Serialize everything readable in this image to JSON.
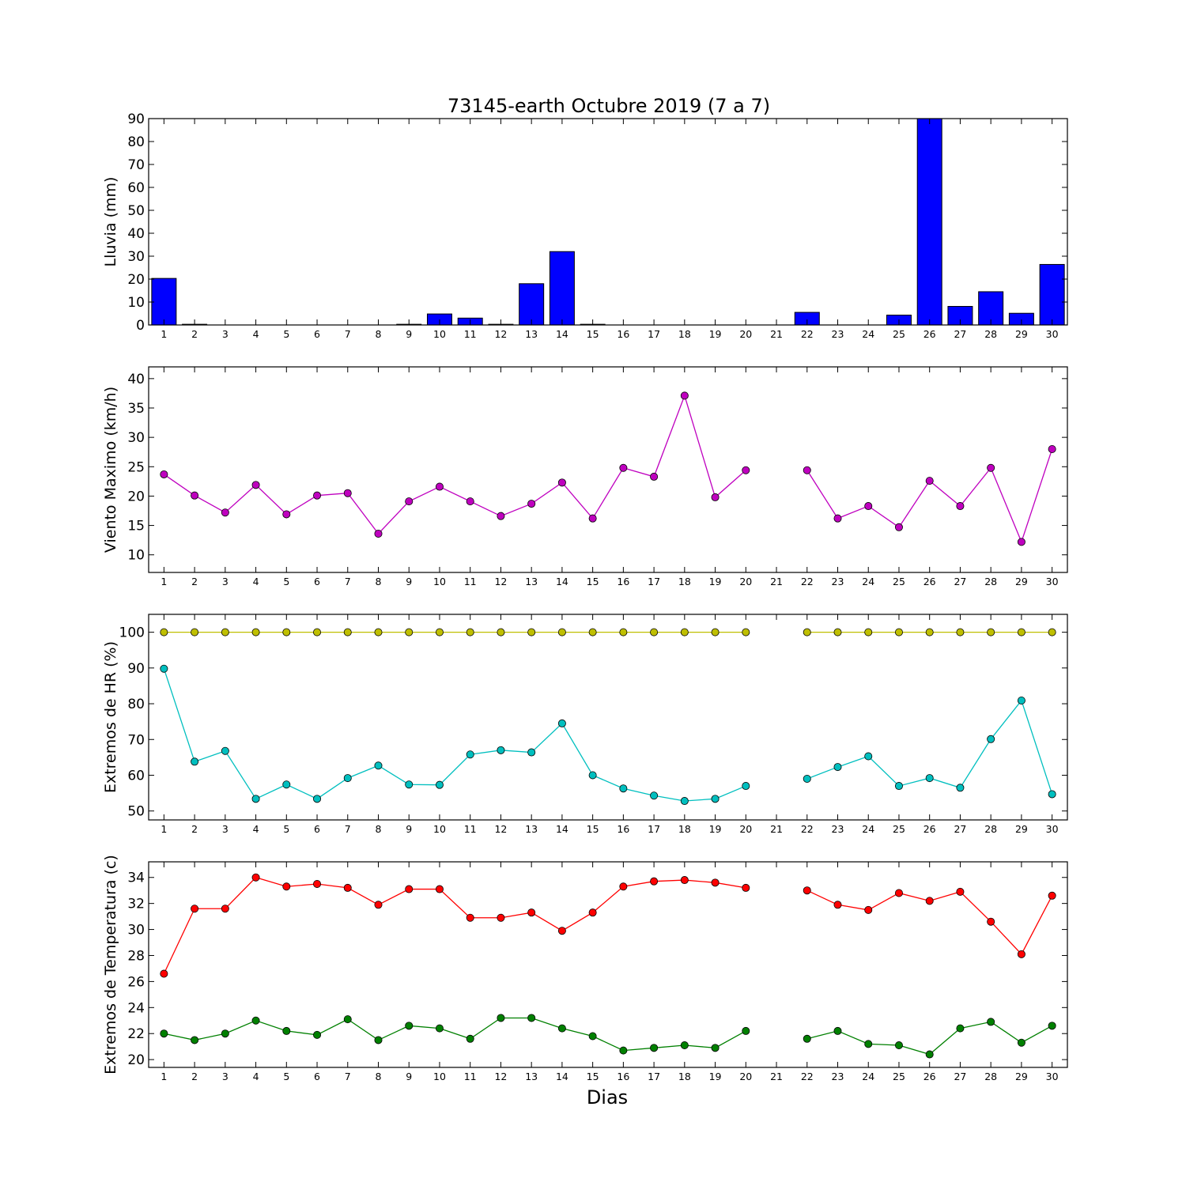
{
  "title": "73145-earth Octubre 2019  (7 a 7)",
  "xlabel": "Dias",
  "chart_data": [
    {
      "type": "bar",
      "ylabel": "Lluvia (mm)",
      "ylim": [
        0,
        90
      ],
      "yticks": [
        0,
        10,
        20,
        30,
        40,
        50,
        60,
        70,
        80,
        90
      ],
      "categories": [
        1,
        2,
        3,
        4,
        5,
        6,
        7,
        8,
        9,
        10,
        11,
        12,
        13,
        14,
        15,
        16,
        17,
        18,
        19,
        20,
        21,
        22,
        23,
        24,
        25,
        26,
        27,
        28,
        29,
        30
      ],
      "values": [
        20.3,
        0.3,
        0,
        0,
        0,
        0,
        0,
        0,
        0.3,
        4.8,
        3.0,
        0.3,
        18.0,
        32.0,
        0.3,
        0,
        0,
        0,
        0,
        0,
        null,
        5.5,
        0,
        0,
        4.3,
        90.0,
        8.1,
        14.5,
        5.1,
        26.4
      ],
      "color": "#0000ff",
      "grid": false
    },
    {
      "type": "line",
      "ylabel": "Viento Maximo (km/h)",
      "ylim": [
        7,
        42
      ],
      "yticks": [
        10,
        15,
        20,
        25,
        30,
        35,
        40
      ],
      "x": [
        1,
        2,
        3,
        4,
        5,
        6,
        7,
        8,
        9,
        10,
        11,
        12,
        13,
        14,
        15,
        16,
        17,
        18,
        19,
        20,
        21,
        22,
        23,
        24,
        25,
        26,
        27,
        28,
        29,
        30
      ],
      "series": [
        {
          "color": "#bf00bf",
          "values": [
            23.7,
            20.1,
            17.2,
            21.9,
            16.9,
            20.1,
            20.5,
            13.6,
            19.1,
            21.6,
            19.1,
            16.6,
            18.7,
            22.3,
            16.2,
            24.8,
            23.3,
            37.1,
            19.8,
            24.4,
            null,
            24.4,
            16.2,
            18.3,
            14.7,
            22.6,
            18.3,
            24.8,
            12.2,
            28.0
          ]
        }
      ],
      "grid": false
    },
    {
      "type": "line",
      "ylabel": "Extremos de HR (%)",
      "ylim": [
        47.5,
        105
      ],
      "yticks": [
        50,
        60,
        70,
        80,
        90,
        100
      ],
      "x": [
        1,
        2,
        3,
        4,
        5,
        6,
        7,
        8,
        9,
        10,
        11,
        12,
        13,
        14,
        15,
        16,
        17,
        18,
        19,
        20,
        21,
        22,
        23,
        24,
        25,
        26,
        27,
        28,
        29,
        30
      ],
      "series": [
        {
          "color": "#bfbf00",
          "values": [
            100,
            100,
            100,
            100,
            100,
            100,
            100,
            100,
            100,
            100,
            100,
            100,
            100,
            100,
            100,
            100,
            100,
            100,
            100,
            100,
            null,
            100,
            100,
            100,
            100,
            100,
            100,
            100,
            100,
            100
          ]
        },
        {
          "color": "#00bfbf",
          "values": [
            89.8,
            63.8,
            66.8,
            53.4,
            57.4,
            53.4,
            59.2,
            62.7,
            57.4,
            57.3,
            65.8,
            67.0,
            66.4,
            74.5,
            60.0,
            56.3,
            54.3,
            52.8,
            53.4,
            57.0,
            null,
            59.0,
            62.3,
            65.3,
            57.0,
            59.2,
            56.5,
            70.1,
            80.9,
            54.7
          ]
        }
      ],
      "grid": false
    },
    {
      "type": "line",
      "ylabel": "Extremos de Temperatura (c)",
      "ylim": [
        19.4,
        35.2
      ],
      "yticks": [
        20,
        22,
        24,
        26,
        28,
        30,
        32,
        34
      ],
      "x": [
        1,
        2,
        3,
        4,
        5,
        6,
        7,
        8,
        9,
        10,
        11,
        12,
        13,
        14,
        15,
        16,
        17,
        18,
        19,
        20,
        21,
        22,
        23,
        24,
        25,
        26,
        27,
        28,
        29,
        30
      ],
      "series": [
        {
          "color": "#ff0000",
          "values": [
            26.6,
            31.6,
            31.6,
            34.0,
            33.3,
            33.5,
            33.2,
            31.9,
            33.1,
            33.1,
            30.9,
            30.9,
            31.3,
            29.9,
            31.3,
            33.3,
            33.7,
            33.8,
            33.6,
            33.2,
            null,
            33.0,
            31.9,
            31.5,
            32.8,
            32.2,
            32.9,
            30.6,
            28.1,
            32.6
          ]
        },
        {
          "color": "#008000",
          "values": [
            22.0,
            21.5,
            22.0,
            23.0,
            22.2,
            21.9,
            23.1,
            21.5,
            22.6,
            22.4,
            21.6,
            23.2,
            23.2,
            22.4,
            21.8,
            20.7,
            20.9,
            21.1,
            20.9,
            22.2,
            null,
            21.6,
            22.2,
            21.2,
            21.1,
            20.4,
            22.4,
            22.9,
            21.3,
            22.6
          ]
        }
      ],
      "grid": false
    }
  ]
}
